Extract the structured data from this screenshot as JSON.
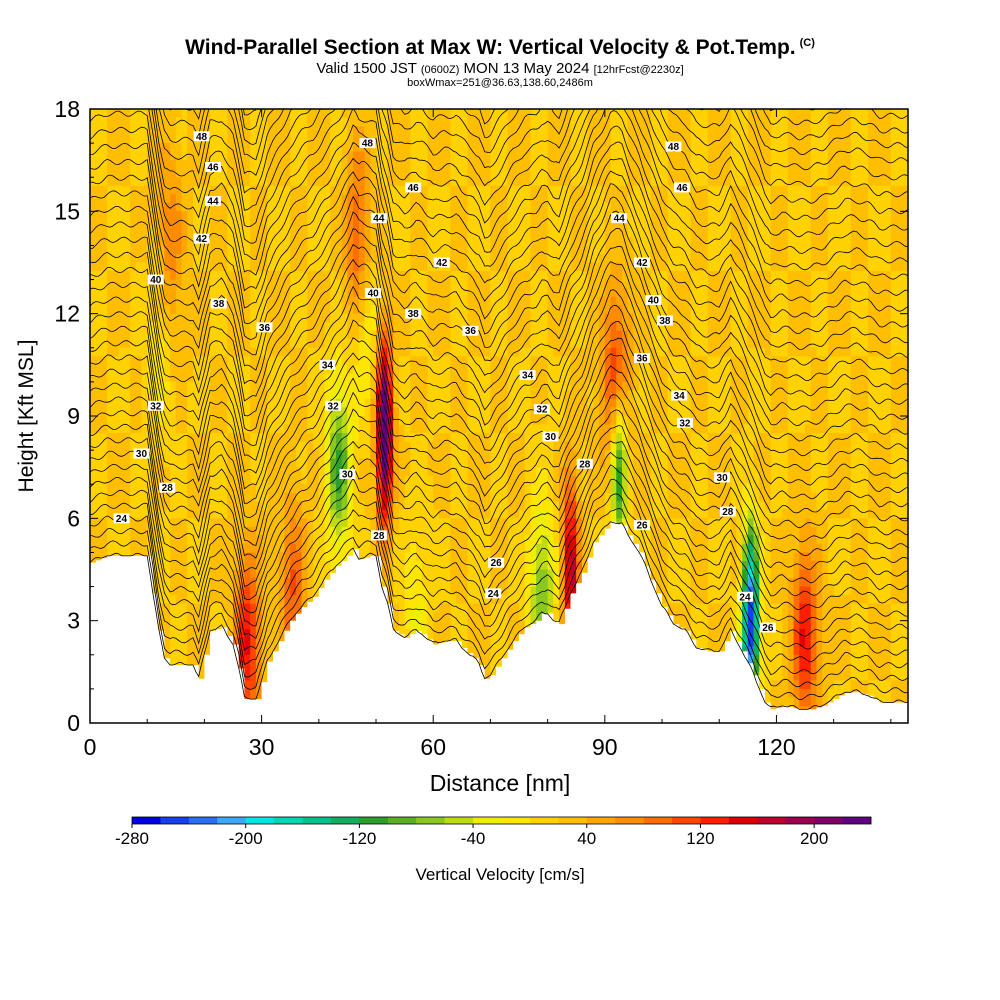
{
  "title": {
    "main": "Wind-Parallel Section at Max W: Vertical Velocity & Pot.Temp.",
    "mark": "(C)",
    "valid_prefix": "Valid 1500 JST",
    "valid_z": "(0600Z)",
    "valid_date": "MON 13 May 2024",
    "forecast": "[12hrFcst@2230z]",
    "box_info": "boxWmax=251@36.63,138.60,2486m"
  },
  "chart_data": {
    "type": "heatmap",
    "xlabel": "Distance [nm]",
    "ylabel": "Height [Kft MSL]",
    "xlim": [
      0,
      143
    ],
    "ylim": [
      0,
      18
    ],
    "x_ticks": [
      0,
      30,
      60,
      90,
      120
    ],
    "y_ticks": [
      0,
      3,
      6,
      9,
      12,
      15,
      18
    ],
    "colorbar": {
      "label": "Vertical Velocity [cm/s]",
      "ticks": [
        -280,
        -200,
        -120,
        -40,
        40,
        120,
        200
      ],
      "range": [
        -280,
        240
      ],
      "colors": [
        "#0000e6",
        "#1440f0",
        "#2a70f5",
        "#3ca8f8",
        "#00e6e6",
        "#00d6b0",
        "#00c28a",
        "#10b060",
        "#2aa02a",
        "#5ab020",
        "#8ac820",
        "#c0dc10",
        "#eeee00",
        "#ffe600",
        "#ffd200",
        "#ffbe00",
        "#ffa600",
        "#ff8c00",
        "#ff6e00",
        "#ff4600",
        "#ff1e00",
        "#e00000",
        "#c0002c",
        "#a00050",
        "#80006a",
        "#600080"
      ]
    },
    "theta_labels": [
      {
        "x": 19.5,
        "y": 17.2,
        "v": "48"
      },
      {
        "x": 48.5,
        "y": 17.0,
        "v": "48"
      },
      {
        "x": 102,
        "y": 16.9,
        "v": "48"
      },
      {
        "x": 21.5,
        "y": 16.3,
        "v": "46"
      },
      {
        "x": 56.5,
        "y": 15.7,
        "v": "46"
      },
      {
        "x": 103.5,
        "y": 15.7,
        "v": "46"
      },
      {
        "x": 21.5,
        "y": 15.3,
        "v": "44"
      },
      {
        "x": 50.5,
        "y": 14.8,
        "v": "44"
      },
      {
        "x": 92.5,
        "y": 14.8,
        "v": "44"
      },
      {
        "x": 19.5,
        "y": 14.2,
        "v": "42"
      },
      {
        "x": 61.5,
        "y": 13.5,
        "v": "42"
      },
      {
        "x": 96.5,
        "y": 13.5,
        "v": "42"
      },
      {
        "x": 11.5,
        "y": 13.0,
        "v": "40"
      },
      {
        "x": 49.5,
        "y": 12.6,
        "v": "40"
      },
      {
        "x": 98.5,
        "y": 12.4,
        "v": "40"
      },
      {
        "x": 22.5,
        "y": 12.3,
        "v": "38"
      },
      {
        "x": 56.5,
        "y": 12.0,
        "v": "38"
      },
      {
        "x": 100.5,
        "y": 11.8,
        "v": "38"
      },
      {
        "x": 30.5,
        "y": 11.6,
        "v": "36"
      },
      {
        "x": 66.5,
        "y": 11.5,
        "v": "36"
      },
      {
        "x": 96.5,
        "y": 10.7,
        "v": "36"
      },
      {
        "x": 41.5,
        "y": 10.5,
        "v": "34"
      },
      {
        "x": 76.5,
        "y": 10.2,
        "v": "34"
      },
      {
        "x": 103,
        "y": 9.6,
        "v": "34"
      },
      {
        "x": 11.5,
        "y": 9.3,
        "v": "32"
      },
      {
        "x": 42.5,
        "y": 9.3,
        "v": "32"
      },
      {
        "x": 79,
        "y": 9.2,
        "v": "32"
      },
      {
        "x": 104,
        "y": 8.8,
        "v": "32"
      },
      {
        "x": 9,
        "y": 7.9,
        "v": "30"
      },
      {
        "x": 45,
        "y": 7.3,
        "v": "30"
      },
      {
        "x": 80.5,
        "y": 8.4,
        "v": "30"
      },
      {
        "x": 110.5,
        "y": 7.2,
        "v": "30"
      },
      {
        "x": 13.5,
        "y": 6.9,
        "v": "28"
      },
      {
        "x": 86.5,
        "y": 7.6,
        "v": "28"
      },
      {
        "x": 111.5,
        "y": 6.2,
        "v": "28"
      },
      {
        "x": 5.5,
        "y": 6.0,
        "v": "24"
      },
      {
        "x": 50.5,
        "y": 5.5,
        "v": "28"
      },
      {
        "x": 96.5,
        "y": 5.8,
        "v": "26"
      },
      {
        "x": 71,
        "y": 4.7,
        "v": "26"
      },
      {
        "x": 70.5,
        "y": 3.8,
        "v": "24"
      },
      {
        "x": 114.5,
        "y": 3.7,
        "v": "24"
      },
      {
        "x": 118.5,
        "y": 2.8,
        "v": "26"
      }
    ],
    "terrain_kft": [
      [
        0,
        4.7
      ],
      [
        3,
        4.9
      ],
      [
        6,
        4.9
      ],
      [
        10,
        4.9
      ],
      [
        11,
        3.8
      ],
      [
        12,
        2.7
      ],
      [
        13,
        1.9
      ],
      [
        14,
        1.7
      ],
      [
        18,
        1.7
      ],
      [
        19,
        1.3
      ],
      [
        20,
        2.0
      ],
      [
        21,
        2.7
      ],
      [
        23,
        2.8
      ],
      [
        25,
        2.3
      ],
      [
        26,
        1.6
      ],
      [
        27,
        0.7
      ],
      [
        29,
        0.7
      ],
      [
        30,
        1.2
      ],
      [
        31,
        1.8
      ],
      [
        33,
        2.4
      ],
      [
        35,
        3.0
      ],
      [
        37,
        3.4
      ],
      [
        39,
        3.7
      ],
      [
        41,
        4.2
      ],
      [
        43,
        4.6
      ],
      [
        45,
        4.9
      ],
      [
        46,
        5.1
      ],
      [
        47,
        4.8
      ],
      [
        49,
        4.9
      ],
      [
        50,
        4.9
      ],
      [
        51,
        4.0
      ],
      [
        52,
        3.5
      ],
      [
        53,
        2.7
      ],
      [
        55,
        2.5
      ],
      [
        57,
        2.7
      ],
      [
        58,
        2.6
      ],
      [
        60,
        2.3
      ],
      [
        62,
        2.4
      ],
      [
        64,
        2.4
      ],
      [
        65,
        2.2
      ],
      [
        67,
        1.9
      ],
      [
        68,
        1.7
      ],
      [
        69,
        1.3
      ],
      [
        70,
        1.4
      ],
      [
        72,
        1.9
      ],
      [
        74,
        2.4
      ],
      [
        76,
        2.8
      ],
      [
        78,
        3.0
      ],
      [
        79,
        3.2
      ],
      [
        80,
        3.2
      ],
      [
        81,
        3.0
      ],
      [
        82,
        2.9
      ],
      [
        84,
        3.8
      ],
      [
        86,
        4.4
      ],
      [
        88,
        5.3
      ],
      [
        90,
        5.7
      ],
      [
        91,
        5.9
      ],
      [
        93,
        5.8
      ],
      [
        94,
        5.5
      ],
      [
        96,
        5.0
      ],
      [
        98,
        4.2
      ],
      [
        100,
        3.4
      ],
      [
        102,
        2.9
      ],
      [
        104,
        2.7
      ],
      [
        106,
        2.2
      ],
      [
        108,
        2.1
      ],
      [
        109,
        2.1
      ],
      [
        110,
        2.1
      ],
      [
        112,
        2.7
      ],
      [
        114,
        2.1
      ],
      [
        116,
        1.4
      ],
      [
        117,
        1.0
      ],
      [
        118,
        0.6
      ],
      [
        119,
        0.4
      ],
      [
        121,
        0.5
      ],
      [
        124,
        0.4
      ],
      [
        126,
        0.4
      ],
      [
        128,
        0.5
      ],
      [
        130,
        0.7
      ],
      [
        132,
        0.9
      ],
      [
        134,
        0.9
      ],
      [
        136,
        0.8
      ],
      [
        138,
        0.6
      ],
      [
        140,
        0.6
      ],
      [
        143,
        0.6
      ]
    ],
    "updraft_features_cm_s": [
      {
        "x": 51.5,
        "y": 8.5,
        "peak": 240
      },
      {
        "x": 84.0,
        "y": 4.5,
        "peak": 160
      },
      {
        "x": 92.0,
        "y": 10.0,
        "peak": 120
      },
      {
        "x": 125.0,
        "y": 2.5,
        "peak": 120
      },
      {
        "x": 47.0,
        "y": 14.0,
        "peak": 100
      },
      {
        "x": 14.0,
        "y": 14.0,
        "peak": 60
      },
      {
        "x": 27.5,
        "y": 2.3,
        "peak": 120
      },
      {
        "x": 35.5,
        "y": 3.8,
        "peak": 80
      }
    ],
    "downdraft_features_cm_s": [
      {
        "x": 43.5,
        "y": 7.5,
        "peak": -120
      },
      {
        "x": 79.0,
        "y": 3.8,
        "peak": -100
      },
      {
        "x": 92.5,
        "y": 7.6,
        "peak": -160
      },
      {
        "x": 115.5,
        "y": 3.0,
        "peak": -280
      },
      {
        "x": 48.0,
        "y": 12.0,
        "peak": -60
      },
      {
        "x": 12.0,
        "y": 11.0,
        "peak": -40
      },
      {
        "x": 57.0,
        "y": 3.5,
        "peak": -40
      }
    ]
  }
}
